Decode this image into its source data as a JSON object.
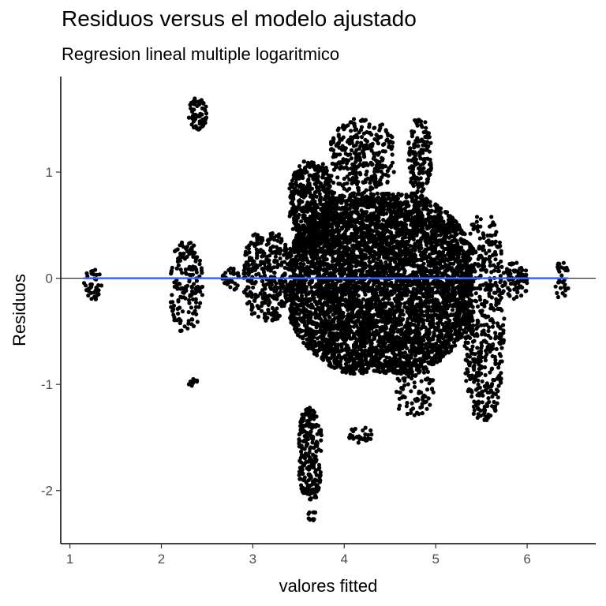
{
  "chart_data": {
    "type": "scatter",
    "title": "Residuos versus el modelo ajustado",
    "subtitle": "Regresion lineal multiple logaritmico",
    "xlabel": "valores fitted",
    "ylabel": "Residuos",
    "xlim": [
      0.9,
      6.75
    ],
    "ylim": [
      -2.5,
      1.9
    ],
    "x_ticks": [
      1,
      2,
      3,
      4,
      5,
      6
    ],
    "y_ticks": [
      -2,
      -1,
      0,
      1
    ],
    "grid": false,
    "colors": {
      "points": "#000000",
      "smooth_line": "#3366ff",
      "reference_line": "#000000"
    },
    "reference_line": {
      "y": 0
    },
    "smooth_line": {
      "x": [
        1.15,
        6.45
      ],
      "y": [
        0,
        0
      ]
    },
    "clusters": [
      {
        "x": [
          1.15,
          1.35
        ],
        "y": [
          -0.2,
          0.08
        ],
        "density": 40
      },
      {
        "x": [
          2.1,
          2.45
        ],
        "y": [
          -0.5,
          0.35
        ],
        "density": 160
      },
      {
        "x": [
          2.3,
          2.5
        ],
        "y": [
          1.4,
          1.7
        ],
        "density": 60
      },
      {
        "x": [
          2.3,
          2.4
        ],
        "y": [
          -1.02,
          -0.95
        ],
        "density": 10
      },
      {
        "x": [
          2.65,
          2.85
        ],
        "y": [
          -0.12,
          0.1
        ],
        "density": 30
      },
      {
        "x": [
          2.9,
          3.4
        ],
        "y": [
          -0.4,
          0.45
        ],
        "density": 350
      },
      {
        "x": [
          3.4,
          5.4
        ],
        "y": [
          -0.9,
          0.8
        ],
        "density": 5200
      },
      {
        "x": [
          3.4,
          3.9
        ],
        "y": [
          0.3,
          1.1
        ],
        "density": 500
      },
      {
        "x": [
          3.85,
          4.55
        ],
        "y": [
          0.8,
          1.5
        ],
        "density": 300
      },
      {
        "x": [
          4.7,
          4.95
        ],
        "y": [
          0.8,
          1.5
        ],
        "density": 150
      },
      {
        "x": [
          3.5,
          3.75
        ],
        "y": [
          -2.1,
          -1.2
        ],
        "density": 240
      },
      {
        "x": [
          3.6,
          3.7
        ],
        "y": [
          -2.28,
          -2.2
        ],
        "density": 12
      },
      {
        "x": [
          4.05,
          4.3
        ],
        "y": [
          -1.55,
          -1.4
        ],
        "density": 30
      },
      {
        "x": [
          4.55,
          5.0
        ],
        "y": [
          -1.3,
          -0.8
        ],
        "density": 90
      },
      {
        "x": [
          5.3,
          5.75
        ],
        "y": [
          -1.35,
          0.6
        ],
        "density": 500
      },
      {
        "x": [
          5.75,
          6.0
        ],
        "y": [
          -0.2,
          0.15
        ],
        "density": 80
      },
      {
        "x": [
          6.3,
          6.45
        ],
        "y": [
          -0.2,
          0.15
        ],
        "density": 30
      }
    ]
  }
}
